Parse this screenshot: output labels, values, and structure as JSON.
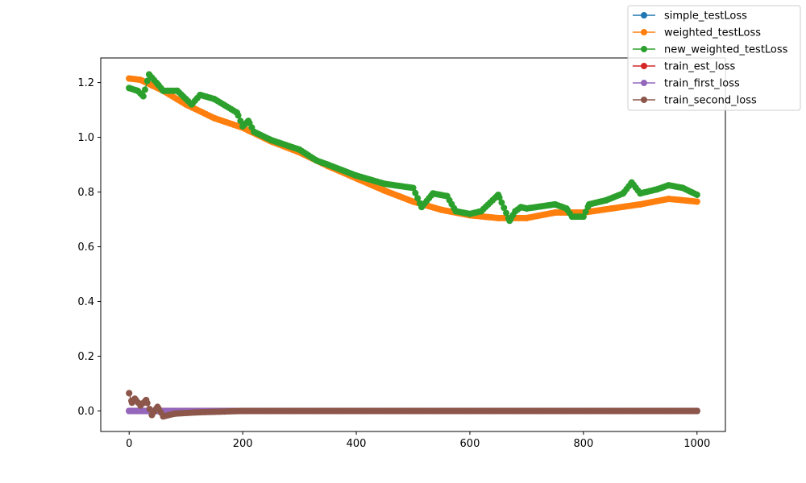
{
  "chart_data": {
    "type": "line",
    "title": "",
    "xlabel": "",
    "ylabel": "",
    "xlim": [
      -50,
      1050
    ],
    "ylim": [
      -0.075,
      1.29
    ],
    "xticks": [
      0,
      200,
      400,
      600,
      800,
      1000
    ],
    "yticks": [
      0.0,
      0.2,
      0.4,
      0.6,
      0.8,
      1.0,
      1.2
    ],
    "xtick_labels": [
      "0",
      "200",
      "400",
      "600",
      "800",
      "1000"
    ],
    "ytick_labels": [
      "0.0",
      "0.2",
      "0.4",
      "0.6",
      "0.8",
      "1.0",
      "1.2"
    ],
    "grid": false,
    "legend_placement": "upper-right (outside plot)",
    "marker": "o",
    "series": [
      {
        "name": "simple_testLoss",
        "color": "#1f77b4",
        "points": [
          [
            0,
            0.0
          ],
          [
            1000,
            0.0
          ]
        ]
      },
      {
        "name": "weighted_testLoss",
        "color": "#ff7f0e",
        "points": [
          [
            0,
            1.215
          ],
          [
            20,
            1.21
          ],
          [
            40,
            1.19
          ],
          [
            60,
            1.17
          ],
          [
            100,
            1.12
          ],
          [
            150,
            1.07
          ],
          [
            200,
            1.035
          ],
          [
            250,
            0.985
          ],
          [
            300,
            0.945
          ],
          [
            350,
            0.895
          ],
          [
            400,
            0.85
          ],
          [
            450,
            0.805
          ],
          [
            500,
            0.765
          ],
          [
            550,
            0.735
          ],
          [
            600,
            0.715
          ],
          [
            650,
            0.705
          ],
          [
            700,
            0.705
          ],
          [
            750,
            0.725
          ],
          [
            800,
            0.725
          ],
          [
            850,
            0.74
          ],
          [
            900,
            0.755
          ],
          [
            950,
            0.775
          ],
          [
            1000,
            0.765
          ]
        ]
      },
      {
        "name": "new_weighted_testLoss",
        "color": "#2ca02c",
        "points": [
          [
            0,
            1.18
          ],
          [
            15,
            1.17
          ],
          [
            25,
            1.15
          ],
          [
            35,
            1.23
          ],
          [
            50,
            1.195
          ],
          [
            60,
            1.17
          ],
          [
            85,
            1.17
          ],
          [
            110,
            1.12
          ],
          [
            125,
            1.155
          ],
          [
            150,
            1.14
          ],
          [
            190,
            1.09
          ],
          [
            200,
            1.04
          ],
          [
            210,
            1.06
          ],
          [
            220,
            1.02
          ],
          [
            250,
            0.99
          ],
          [
            300,
            0.955
          ],
          [
            330,
            0.915
          ],
          [
            350,
            0.9
          ],
          [
            400,
            0.86
          ],
          [
            450,
            0.83
          ],
          [
            500,
            0.815
          ],
          [
            515,
            0.745
          ],
          [
            535,
            0.795
          ],
          [
            560,
            0.785
          ],
          [
            575,
            0.73
          ],
          [
            600,
            0.72
          ],
          [
            620,
            0.73
          ],
          [
            650,
            0.79
          ],
          [
            670,
            0.695
          ],
          [
            680,
            0.73
          ],
          [
            690,
            0.745
          ],
          [
            700,
            0.74
          ],
          [
            750,
            0.755
          ],
          [
            770,
            0.74
          ],
          [
            780,
            0.71
          ],
          [
            800,
            0.71
          ],
          [
            810,
            0.755
          ],
          [
            840,
            0.77
          ],
          [
            870,
            0.795
          ],
          [
            885,
            0.835
          ],
          [
            900,
            0.795
          ],
          [
            930,
            0.81
          ],
          [
            950,
            0.825
          ],
          [
            975,
            0.815
          ],
          [
            1000,
            0.79
          ]
        ]
      },
      {
        "name": "train_est_loss",
        "color": "#d62728",
        "points": [
          [
            0,
            0.0
          ],
          [
            1000,
            0.0
          ]
        ]
      },
      {
        "name": "train_first_loss",
        "color": "#9467bd",
        "points": [
          [
            0,
            0.0
          ],
          [
            50,
            0.0
          ],
          [
            1000,
            0.0
          ]
        ]
      },
      {
        "name": "train_second_loss",
        "color": "#8c564b",
        "points": [
          [
            0,
            0.065
          ],
          [
            5,
            0.03
          ],
          [
            10,
            0.045
          ],
          [
            20,
            0.02
          ],
          [
            30,
            0.04
          ],
          [
            40,
            -0.015
          ],
          [
            50,
            0.015
          ],
          [
            60,
            -0.02
          ],
          [
            80,
            -0.01
          ],
          [
            120,
            -0.005
          ],
          [
            200,
            0.0
          ],
          [
            1000,
            0.0
          ]
        ]
      }
    ]
  }
}
